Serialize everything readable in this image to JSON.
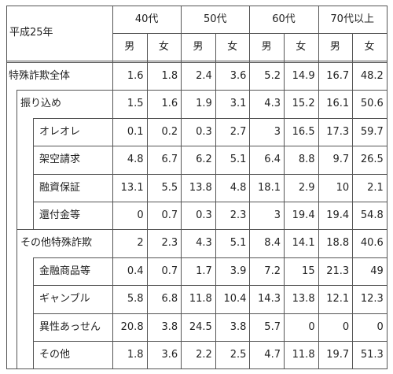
{
  "table": {
    "corner_label": "平成25年",
    "age_groups": [
      "40代",
      "50代",
      "60代",
      "70代以上"
    ],
    "genders": [
      "男",
      "女",
      "男",
      "女",
      "男",
      "女",
      "男",
      "女"
    ],
    "rows": [
      {
        "label": "特殊詐欺全体",
        "level": 0,
        "values": [
          "1.6",
          "1.8",
          "2.4",
          "3.6",
          "5.2",
          "14.9",
          "16.7",
          "48.2"
        ]
      },
      {
        "label": "振り込め",
        "level": 1,
        "values": [
          "1.5",
          "1.6",
          "1.9",
          "3.1",
          "4.3",
          "15.2",
          "16.1",
          "50.6"
        ]
      },
      {
        "label": "オレオレ",
        "level": 2,
        "values": [
          "0.1",
          "0.2",
          "0.3",
          "2.7",
          "3",
          "16.5",
          "17.3",
          "59.7"
        ]
      },
      {
        "label": "架空請求",
        "level": 2,
        "values": [
          "4.8",
          "6.7",
          "6.2",
          "5.1",
          "6.4",
          "8.8",
          "9.7",
          "26.5"
        ]
      },
      {
        "label": "融資保証",
        "level": 2,
        "values": [
          "13.1",
          "5.5",
          "13.8",
          "4.8",
          "18.1",
          "2.9",
          "10",
          "2.1"
        ]
      },
      {
        "label": "還付金等",
        "level": 2,
        "values": [
          "0",
          "0.7",
          "0.3",
          "2.3",
          "3",
          "19.4",
          "19.4",
          "54.8"
        ]
      },
      {
        "label": "その他特殊詐欺",
        "level": 1,
        "values": [
          "2",
          "2.3",
          "4.3",
          "5.1",
          "8.4",
          "14.1",
          "18.8",
          "40.6"
        ]
      },
      {
        "label": "金融商品等",
        "level": 2,
        "values": [
          "0.4",
          "0.7",
          "1.7",
          "3.9",
          "7.2",
          "15",
          "21.3",
          "49"
        ]
      },
      {
        "label": "ギャンブル",
        "level": 2,
        "values": [
          "5.8",
          "6.8",
          "11.8",
          "10.4",
          "14.3",
          "13.8",
          "12.1",
          "12.3"
        ]
      },
      {
        "label": "異性あっせん",
        "level": 2,
        "values": [
          "20.8",
          "3.8",
          "24.5",
          "3.8",
          "5.7",
          "0",
          "0",
          "0"
        ]
      },
      {
        "label": "その他",
        "level": 2,
        "values": [
          "1.8",
          "3.6",
          "2.2",
          "2.5",
          "4.7",
          "11.8",
          "19.7",
          "51.3"
        ]
      }
    ]
  }
}
